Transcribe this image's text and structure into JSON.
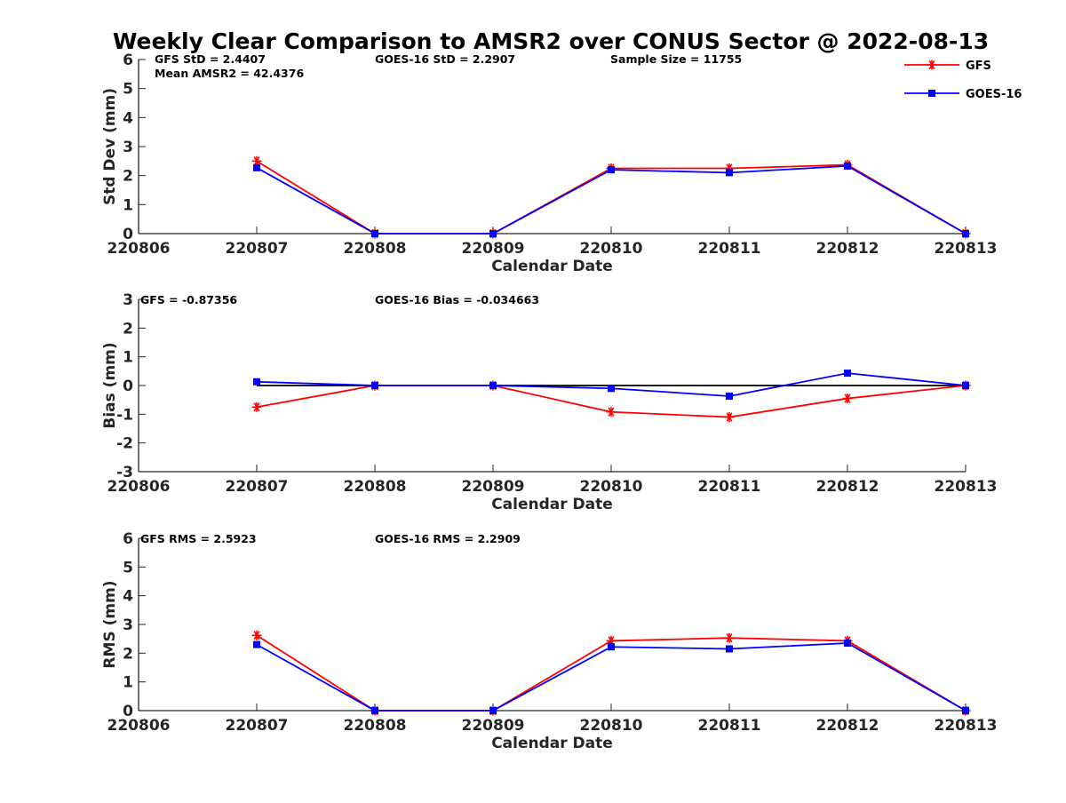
{
  "title": "Weekly Clear Comparison to AMSR2 over CONUS Sector @ 2022-08-13",
  "legend": [
    {
      "name": "GFS",
      "color": "#ff0000",
      "marker": "asterisk"
    },
    {
      "name": "GOES-16",
      "color": "#0000ff",
      "marker": "square"
    }
  ],
  "chart_data": [
    {
      "type": "line",
      "x": [
        "220806",
        "220807",
        "220808",
        "220809",
        "220810",
        "220811",
        "220812",
        "220813"
      ],
      "xlabel": "Calendar Date",
      "ylabel": "Std Dev (mm)",
      "ylim": [
        0,
        6
      ],
      "yticks": [
        "0",
        "1",
        "2",
        "3",
        "4",
        "5",
        "6"
      ],
      "annotations": [
        "GFS StD = 2.4407",
        "Mean AMSR2 = 42.4376",
        "GOES-16 StD = 2.2907",
        "Sample Size = 11755"
      ],
      "zero_line": false,
      "series": [
        {
          "name": "GFS",
          "color": "#ff0000",
          "marker": "asterisk",
          "values": [
            null,
            2.5,
            0.0,
            0.0,
            2.25,
            2.25,
            2.37,
            0.0
          ]
        },
        {
          "name": "GOES-16",
          "color": "#0000ff",
          "marker": "square",
          "values": [
            null,
            2.27,
            0.0,
            0.0,
            2.2,
            2.1,
            2.33,
            0.0
          ]
        }
      ]
    },
    {
      "type": "line",
      "x": [
        "220806",
        "220807",
        "220808",
        "220809",
        "220810",
        "220811",
        "220812",
        "220813"
      ],
      "xlabel": "Calendar Date",
      "ylabel": "Bias (mm)",
      "ylim": [
        -3,
        3
      ],
      "yticks": [
        "-3",
        "-2",
        "-1",
        "0",
        "1",
        "2",
        "3"
      ],
      "annotations": [
        "GFS = -0.87356",
        "GOES-16 Bias  = -0.034663"
      ],
      "zero_line": true,
      "series": [
        {
          "name": "GFS",
          "color": "#ff0000",
          "marker": "asterisk",
          "values": [
            null,
            -0.75,
            0.0,
            0.0,
            -0.92,
            -1.1,
            -0.45,
            0.0
          ]
        },
        {
          "name": "GOES-16",
          "color": "#0000ff",
          "marker": "square",
          "values": [
            null,
            0.13,
            0.0,
            0.0,
            -0.1,
            -0.37,
            0.43,
            0.0
          ]
        }
      ]
    },
    {
      "type": "line",
      "x": [
        "220806",
        "220807",
        "220808",
        "220809",
        "220810",
        "220811",
        "220812",
        "220813"
      ],
      "xlabel": "Calendar Date",
      "ylabel": "RMS (mm)",
      "ylim": [
        0,
        6
      ],
      "yticks": [
        "0",
        "1",
        "2",
        "3",
        "4",
        "5",
        "6"
      ],
      "annotations": [
        "GFS RMS = 2.5923",
        "GOES-16 RMS = 2.2909"
      ],
      "zero_line": false,
      "series": [
        {
          "name": "GFS",
          "color": "#ff0000",
          "marker": "asterisk",
          "values": [
            null,
            2.62,
            0.0,
            0.0,
            2.43,
            2.53,
            2.43,
            0.0
          ]
        },
        {
          "name": "GOES-16",
          "color": "#0000ff",
          "marker": "square",
          "values": [
            null,
            2.3,
            0.0,
            0.0,
            2.22,
            2.15,
            2.35,
            0.0
          ]
        }
      ]
    }
  ]
}
